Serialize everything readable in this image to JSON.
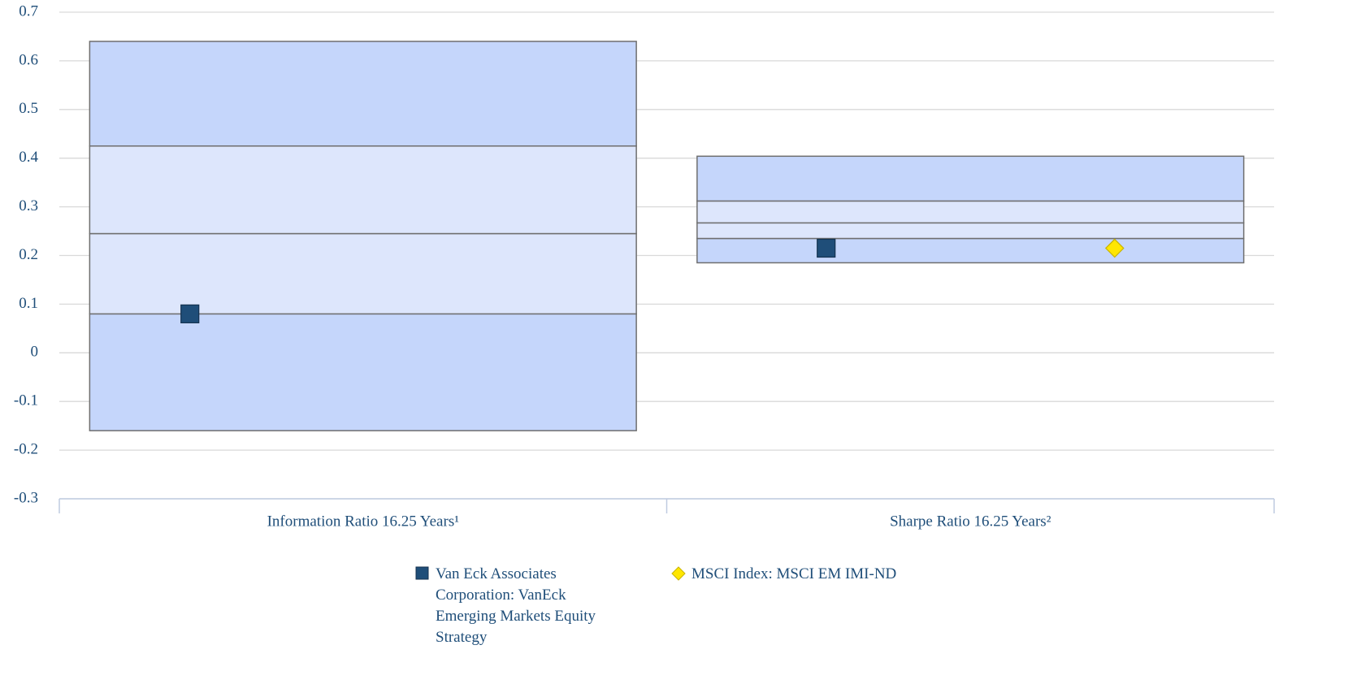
{
  "chart_data": {
    "type": "floating_bar",
    "categories": [
      "Information Ratio 16.25 Years¹",
      "Sharpe Ratio 16.25 Years²"
    ],
    "percentiles": [
      [
        -0.16,
        0.08,
        0.245,
        0.425,
        0.64
      ],
      [
        0.185,
        0.235,
        0.267,
        0.312,
        0.404
      ]
    ],
    "band_colors": [
      "#c5d6fb",
      "#dde6fc",
      "#dde6fc",
      "#c5d6fb"
    ],
    "series": [
      {
        "name": "Van Eck Associates Corporation: VanEck Emerging Markets Equity Strategy",
        "color": "#1f4e79",
        "marker": "square",
        "values": [
          0.08,
          0.215
        ]
      },
      {
        "name": "MSCI Index: MSCI EM IMI-ND",
        "color": "#ffe600",
        "marker": "diamond",
        "values": [
          null,
          0.215
        ]
      }
    ],
    "ylim": [
      -0.3,
      0.7
    ],
    "yticks": [
      -0.3,
      -0.2,
      -0.1,
      0,
      0.1,
      0.2,
      0.3,
      0.4,
      0.5,
      0.6,
      0.7
    ],
    "grid": true
  }
}
